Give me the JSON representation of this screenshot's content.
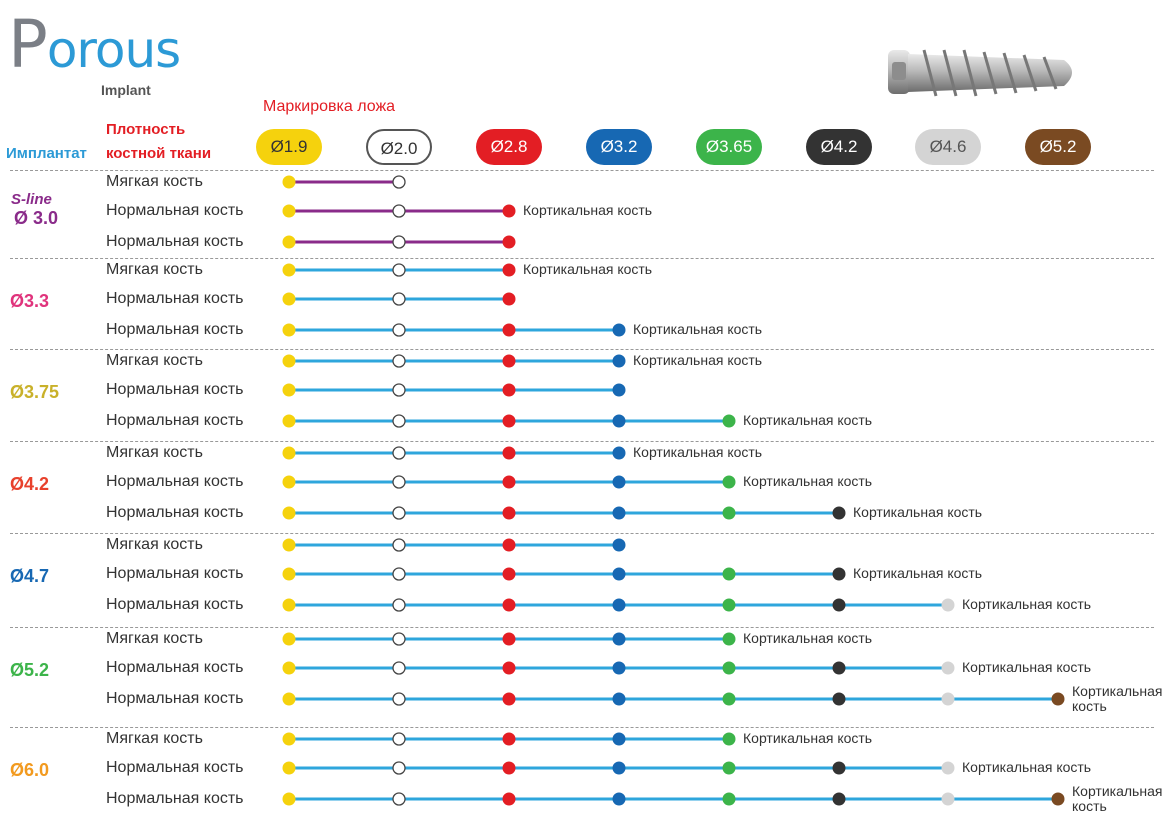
{
  "brand": {
    "name_first": "P",
    "name_rest": "orous",
    "sub": "Implant"
  },
  "headers": {
    "marking": "Маркировка ложа",
    "density_line1": "Плотность",
    "density_line2": "костной ткани",
    "implant": "Имплантат"
  },
  "drills": [
    {
      "label": "Ø1.9",
      "color": "#f5d20d",
      "text_color": "#333333"
    },
    {
      "label": "Ø2.0",
      "color": "#ffffff",
      "text_color": "#333333"
    },
    {
      "label": "Ø2.8",
      "color": "#e31e24",
      "text_color": "#ffffff"
    },
    {
      "label": "Ø3.2",
      "color": "#1768b3",
      "text_color": "#ffffff"
    },
    {
      "label": "Ø3.65",
      "color": "#3cb44a",
      "text_color": "#ffffff"
    },
    {
      "label": "Ø4.2",
      "color": "#333333",
      "text_color": "#ffffff"
    },
    {
      "label": "Ø4.6",
      "color": "#d4d4d4",
      "text_color": "#555555"
    },
    {
      "label": "Ø5.2",
      "color": "#7a4a22",
      "text_color": "#ffffff"
    }
  ],
  "cortical_label": "Кортикальная кость",
  "cortical_label_split": [
    "Кортикальная",
    "кость"
  ],
  "groups": [
    {
      "label": "Ø 3.0",
      "brand_tag": "S-line",
      "color": "#8a2b8a",
      "line_color": "#8a2b8a",
      "rows": [
        {
          "density": "Мягкая кость",
          "steps": 2,
          "cortical": false
        },
        {
          "density": "Нормальная кость",
          "steps": 3,
          "cortical": true
        },
        {
          "density": "Нормальная кость",
          "steps": 3,
          "cortical": false
        }
      ]
    },
    {
      "label": "Ø3.3",
      "color": "#e0337c",
      "line_color": "#2ea6dc",
      "rows": [
        {
          "density": "Мягкая кость",
          "steps": 3,
          "cortical": true
        },
        {
          "density": "Нормальная кость",
          "steps": 3,
          "cortical": false
        },
        {
          "density": "Нормальная кость",
          "steps": 4,
          "cortical": true
        }
      ]
    },
    {
      "label": "Ø3.75",
      "color": "#c9b12a",
      "line_color": "#2ea6dc",
      "rows": [
        {
          "density": "Мягкая кость",
          "steps": 4,
          "cortical": true
        },
        {
          "density": "Нормальная кость",
          "steps": 4,
          "cortical": false
        },
        {
          "density": "Нормальная кость",
          "steps": 5,
          "cortical": true
        }
      ]
    },
    {
      "label": "Ø4.2",
      "color": "#e8412c",
      "line_color": "#2ea6dc",
      "rows": [
        {
          "density": "Мягкая кость",
          "steps": 4,
          "cortical": true
        },
        {
          "density": "Нормальная кость",
          "steps": 5,
          "cortical": true
        },
        {
          "density": "Нормальная кость",
          "steps": 6,
          "cortical": true
        }
      ]
    },
    {
      "label": "Ø4.7",
      "color": "#1768b3",
      "line_color": "#2ea6dc",
      "rows": [
        {
          "density": "Мягкая кость",
          "steps": 4,
          "cortical": false
        },
        {
          "density": "Нормальная кость",
          "steps": 6,
          "cortical": true
        },
        {
          "density": "Нормальная кость",
          "steps": 7,
          "cortical": true
        }
      ]
    },
    {
      "label": "Ø5.2",
      "color": "#3cb44a",
      "line_color": "#2ea6dc",
      "rows": [
        {
          "density": "Мягкая кость",
          "steps": 5,
          "cortical": true
        },
        {
          "density": "Нормальная кость",
          "steps": 7,
          "cortical": true
        },
        {
          "density": "Нормальная кость",
          "steps": 8,
          "cortical": true
        }
      ]
    },
    {
      "label": "Ø6.0",
      "color": "#f29a1f",
      "line_color": "#2ea6dc",
      "rows": [
        {
          "density": "Мягкая кость",
          "steps": 5,
          "cortical": true
        },
        {
          "density": "Нормальная кость",
          "steps": 7,
          "cortical": true
        },
        {
          "density": "Нормальная кость",
          "steps": 8,
          "cortical": true
        }
      ]
    }
  ]
}
